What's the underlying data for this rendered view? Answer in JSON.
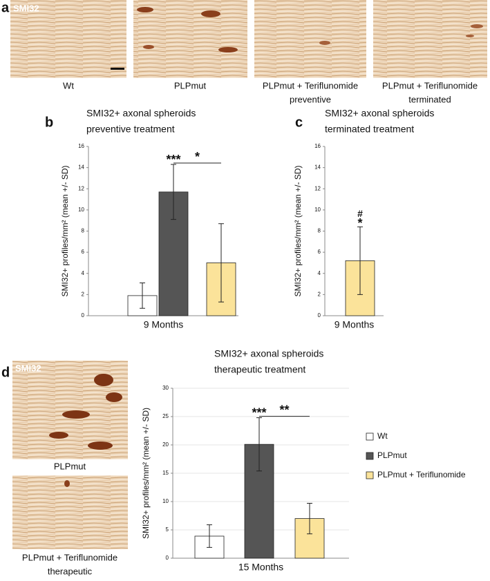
{
  "panel_a": {
    "letter": "a",
    "stain": "SMI32",
    "captions": [
      [
        "Wt"
      ],
      [
        "PLPmut"
      ],
      [
        "PLPmut + Teriflunomide",
        "preventive"
      ],
      [
        "PLPmut + Teriflunomide",
        "terminated"
      ]
    ]
  },
  "panel_d": {
    "letter": "d",
    "stain": "SMI32",
    "captions": [
      [
        "PLPmut"
      ],
      [
        "PLPmut + Teriflunomide",
        "therapeutic"
      ]
    ]
  },
  "chart_data": [
    {
      "type": "bar",
      "panel": "b",
      "title": "SMI32+ axonal spheroids",
      "subtitle": "preventive treatment",
      "y_label": "SMI32+ profiles/mm² (mean +/- SD)",
      "x_label": "9 Months",
      "values": [
        1.9,
        11.7,
        5.0
      ],
      "errors": [
        1.2,
        2.6,
        3.7
      ],
      "colors": [
        "#ffffff",
        "#555555",
        "#fbe39a"
      ],
      "annotations": [
        "***",
        "*"
      ],
      "ylim": [
        0,
        16
      ],
      "yticks": [
        0,
        2,
        4,
        6,
        8,
        10,
        12,
        14,
        16
      ],
      "grid": false
    },
    {
      "type": "bar",
      "panel": "c",
      "title": "SMI32+ axonal spheroids",
      "subtitle": "terminated treatment",
      "y_label": "SMI32+ profiles/mm² (mean +/- SD)",
      "x_label": "9 Months",
      "values": [
        5.2
      ],
      "errors": [
        3.2
      ],
      "colors": [
        "#fbe39a"
      ],
      "annotations": [
        "#",
        "*"
      ],
      "ylim": [
        0,
        16
      ],
      "yticks": [
        0,
        2,
        4,
        6,
        8,
        10,
        12,
        14,
        16
      ],
      "grid": false
    },
    {
      "type": "bar",
      "panel": "d",
      "title": "SMI32+ axonal spheroids",
      "subtitle": "therapeutic treatment",
      "y_label": "SMI32+ profiles/mm² (mean +/- SD)",
      "x_label": "15 Months",
      "series": [
        {
          "name": "Wt",
          "color": "#ffffff"
        },
        {
          "name": "PLPmut",
          "color": "#555555"
        },
        {
          "name": "PLPmut + Teriflunomide",
          "color": "#fbe39a"
        }
      ],
      "values": [
        3.9,
        20.1,
        7.0
      ],
      "errors": [
        2.0,
        4.7,
        2.7
      ],
      "annotations": [
        "***",
        "**"
      ],
      "ylim": [
        0,
        30
      ],
      "yticks": [
        0,
        5,
        10,
        15,
        20,
        25,
        30
      ],
      "grid": true
    }
  ]
}
